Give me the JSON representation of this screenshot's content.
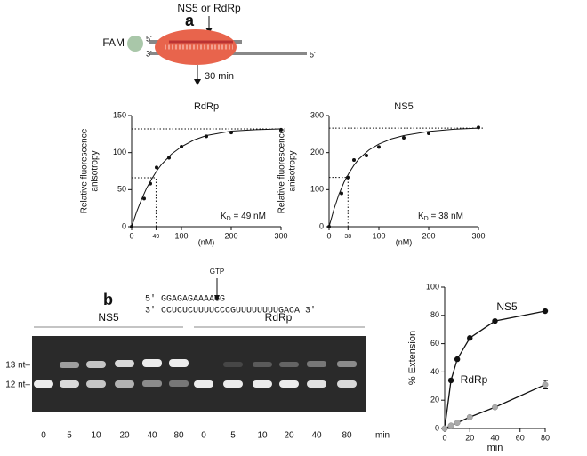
{
  "panels": [
    "a",
    "b"
  ],
  "diagram": {
    "enzyme": "NS5 or RdRp",
    "label": "FAM",
    "top_5": "5'",
    "bottom_3": "3'",
    "bottom_5": "5'",
    "time": "30 min"
  },
  "gel": {
    "groups": [
      "NS5",
      "RdRp"
    ],
    "markers": [
      "13 nt–",
      "12 nt–"
    ],
    "lane_labels": [
      "0",
      "5",
      "10",
      "20",
      "40",
      "80",
      "0",
      "5",
      "10",
      "20",
      "40",
      "80"
    ],
    "unit": "min",
    "substrate": "GTP",
    "top_strand": "5' GGAGAGAAAAGG",
    "bottom_strand": "3' CCUCUCUUUUCCCGUUUUUUUUGACA 3'"
  },
  "chart_data": [
    {
      "type": "scatter",
      "title": "RdRp",
      "xlabel": "(nM)",
      "ylabel": [
        "Relative fluorescence",
        "anisotropy"
      ],
      "x": [
        0,
        25,
        37.5,
        50,
        75,
        100,
        150,
        200,
        300
      ],
      "values": [
        0,
        38,
        58,
        80,
        93,
        108,
        122,
        127,
        131
      ],
      "fit": {
        "x": [
          0,
          10,
          20,
          30,
          40,
          50,
          60,
          80,
          100,
          125,
          150,
          200,
          250,
          300
        ],
        "values": [
          0,
          20,
          37,
          52,
          64,
          75,
          84,
          98,
          108,
          117,
          123,
          129,
          131,
          132
        ]
      },
      "plateau": 132,
      "kd": 49,
      "annotation": {
        "k": "K",
        "sub": "D",
        "text": " = 49 nM"
      },
      "xlim": [
        0,
        300
      ],
      "ylim": [
        0,
        150
      ],
      "xticks": [
        0,
        49,
        100,
        200,
        300
      ],
      "yticks": [
        0,
        50,
        100,
        150
      ],
      "color": "#111111"
    },
    {
      "type": "scatter",
      "title": "NS5",
      "xlabel": "(nM)",
      "ylabel": [
        "Relative fluorescence",
        "anisotropy"
      ],
      "x": [
        0,
        25,
        37.5,
        50,
        75,
        100,
        150,
        200,
        300
      ],
      "values": [
        0,
        90,
        133,
        180,
        192,
        215,
        240,
        252,
        268
      ],
      "fit": {
        "x": [
          0,
          10,
          20,
          30,
          40,
          50,
          60,
          80,
          100,
          125,
          150,
          200,
          250,
          300
        ],
        "values": [
          0,
          48,
          88,
          120,
          145,
          166,
          183,
          207,
          223,
          237,
          246,
          257,
          263,
          266
        ]
      },
      "plateau": 266,
      "kd": 38,
      "annotation": {
        "k": "K",
        "sub": "D",
        "text": " = 38 nM"
      },
      "xlim": [
        0,
        300
      ],
      "ylim": [
        0,
        300
      ],
      "xticks": [
        0,
        38,
        100,
        200,
        300
      ],
      "yticks": [
        0,
        100,
        200,
        300
      ],
      "color": "#111111"
    },
    {
      "type": "line",
      "xlabel": "min",
      "ylabel": "% Extension",
      "x": [
        0,
        5,
        10,
        20,
        40,
        80
      ],
      "series": [
        {
          "name": "NS5",
          "color": "#111111",
          "values": [
            0,
            34,
            49,
            64,
            76,
            83
          ]
        },
        {
          "name": "RdRp",
          "color": "#aaaaaa",
          "values": [
            0,
            2,
            4,
            8,
            15,
            31
          ],
          "errors": [
            null,
            null,
            null,
            null,
            null,
            3
          ]
        }
      ],
      "xlim": [
        0,
        80
      ],
      "ylim": [
        0,
        100
      ],
      "xticks": [
        0,
        20,
        40,
        60,
        80
      ],
      "yticks": [
        0,
        20,
        40,
        60,
        80,
        100
      ]
    }
  ]
}
